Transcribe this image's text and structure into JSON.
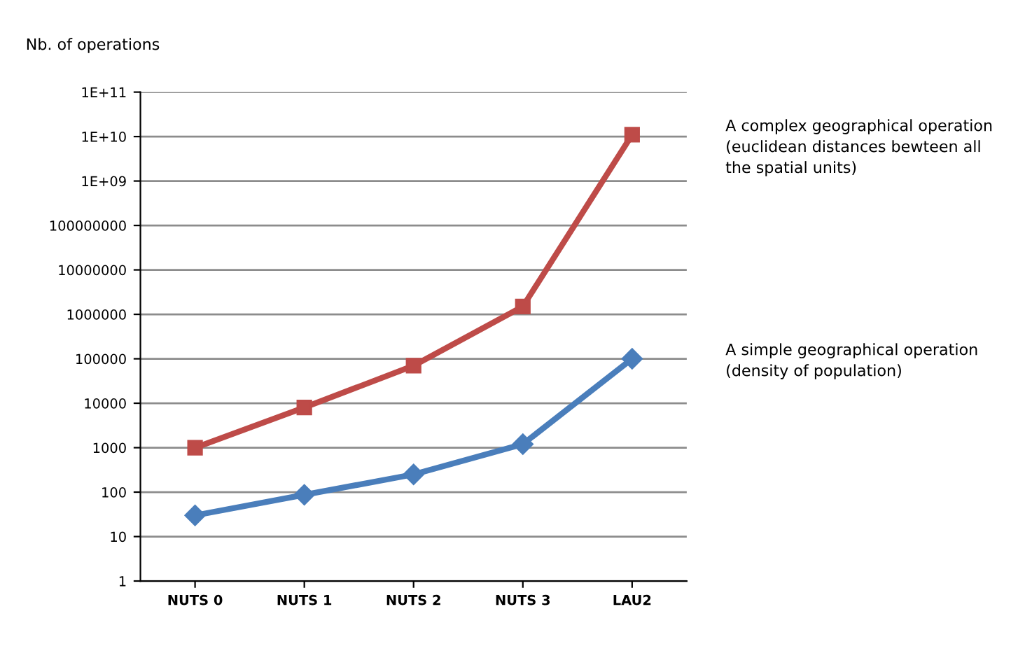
{
  "chart_data": {
    "type": "line",
    "ylabel": "Nb. of operations",
    "categories": [
      "NUTS 0",
      "NUTS 1",
      "NUTS 2",
      "NUTS 3",
      "LAU2"
    ],
    "series": [
      {
        "name": "A complex geographical operation\n(euclidean distances bewteen all\nthe spatial units)",
        "color": "#be4b48",
        "marker": "square",
        "values": [
          1000,
          8000,
          70000,
          1500000,
          11000000000
        ]
      },
      {
        "name": "A simple geographical operation\n(density of population)",
        "color": "#4a7ebb",
        "marker": "diamond",
        "values": [
          30,
          87,
          250,
          1200,
          100000
        ]
      }
    ],
    "log": "y",
    "ylim": [
      1,
      100000000000
    ],
    "yticks": [
      1,
      10,
      100,
      1000,
      10000,
      100000,
      1000000,
      10000000,
      100000000,
      {
        "value": 1000000000,
        "label": "1E+09"
      },
      {
        "value": 10000000000,
        "label": "1E+10"
      },
      {
        "value": 100000000000,
        "label": "1E+11"
      }
    ],
    "grid": "y",
    "legend": false
  }
}
